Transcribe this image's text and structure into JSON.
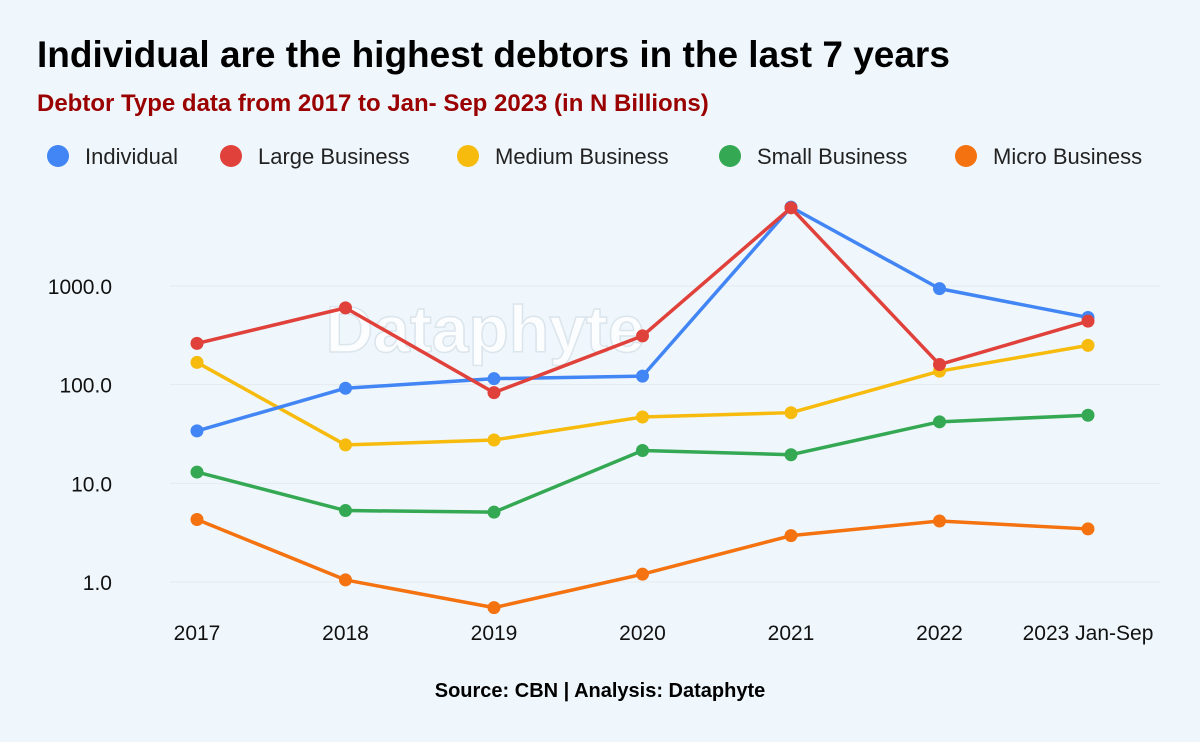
{
  "chart_data": {
    "type": "line",
    "title": "Individual are the highest debtors in the last 7 years",
    "subtitle": "Debtor Type data from 2017 to Jan- Sep 2023 (in N Billions)",
    "yscale": "log",
    "ylim": [
      0.55,
      6500
    ],
    "yticks": [
      1,
      10,
      100,
      1000
    ],
    "ytick_labels": [
      "1.0",
      "10.0",
      "100.0",
      "1000.0"
    ],
    "categories": [
      "2017",
      "2018",
      "2019",
      "2020",
      "2021",
      "2022",
      "2023 Jan-Sep"
    ],
    "series": [
      {
        "name": "Individual",
        "color": "#4285f4",
        "values": [
          34,
          92,
          115,
          122,
          6300,
          940,
          480
        ]
      },
      {
        "name": "Large Business",
        "color": "#e0413a",
        "values": [
          262,
          600,
          83,
          312,
          6200,
          160,
          440
        ]
      },
      {
        "name": "Medium Business",
        "color": "#f7bb0d",
        "values": [
          168,
          24.5,
          27.5,
          47,
          52,
          137,
          250
        ]
      },
      {
        "name": "Small Business",
        "color": "#34a853",
        "values": [
          13,
          5.3,
          5.1,
          21.5,
          19.5,
          42,
          49
        ]
      },
      {
        "name": "Micro Business",
        "color": "#f4720f",
        "values": [
          4.3,
          1.05,
          0.55,
          1.2,
          2.95,
          4.15,
          3.45
        ]
      }
    ],
    "watermark": "Dataphyte",
    "source": "Source: CBN | Analysis: Dataphyte"
  }
}
